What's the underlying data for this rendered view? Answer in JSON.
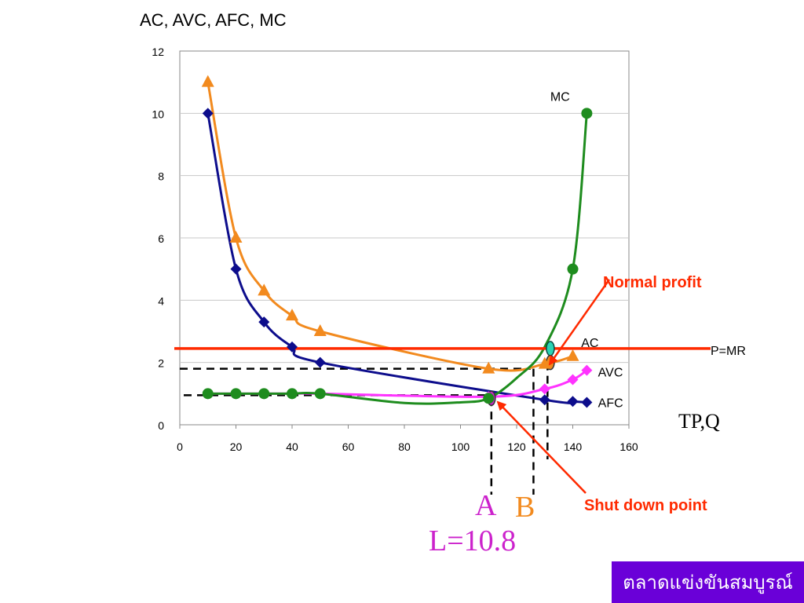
{
  "chart_data": {
    "type": "line",
    "title": "AC, AVC, AFC, MC",
    "xlabel": "TP,Q",
    "xlim": [
      0,
      160
    ],
    "ylim": [
      0,
      12
    ],
    "xticks": [
      0,
      20,
      40,
      60,
      80,
      100,
      120,
      140,
      160
    ],
    "yticks": [
      0,
      2,
      4,
      6,
      8,
      10,
      12
    ],
    "grid": "horizontal",
    "series": [
      {
        "name": "AC",
        "color": "#f28a1e",
        "marker": "triangle",
        "x": [
          10,
          20,
          30,
          40,
          50,
          110,
          130,
          140
        ],
        "y": [
          11,
          6,
          4.3,
          3.5,
          3,
          1.8,
          1.95,
          2.2
        ]
      },
      {
        "name": "AFC",
        "color": "#0d0d8c",
        "marker": "diamond",
        "x": [
          10,
          20,
          30,
          40,
          50,
          130,
          140,
          145
        ],
        "y": [
          10,
          5,
          3.3,
          2.5,
          2,
          0.8,
          0.75,
          0.72
        ]
      },
      {
        "name": "AVC",
        "color": "#ff33ff",
        "marker": "diamond",
        "x": [
          10,
          20,
          30,
          40,
          50,
          110,
          130,
          140,
          145
        ],
        "y": [
          1.0,
          1.0,
          1.0,
          1.0,
          1.0,
          0.9,
          1.15,
          1.45,
          1.75
        ]
      },
      {
        "name": "MC",
        "color": "#1e8c1e",
        "marker": "circle",
        "x": [
          10,
          20,
          30,
          40,
          50,
          110,
          140,
          145
        ],
        "y": [
          1.0,
          1.0,
          1.0,
          1.0,
          1.0,
          0.85,
          5,
          10
        ]
      }
    ],
    "price_line": {
      "label": "P=MR",
      "y": 2.45,
      "color": "#ff2a00"
    },
    "annotations": {
      "normal_profit": "Normal profit",
      "shut_down": "Shut down point",
      "point_a": "A",
      "point_b": "B",
      "l_value": "L=10.8"
    }
  },
  "badge": {
    "text": "ตลาดแข่งขันสมบูรณ์",
    "color": "#6a00d8"
  }
}
